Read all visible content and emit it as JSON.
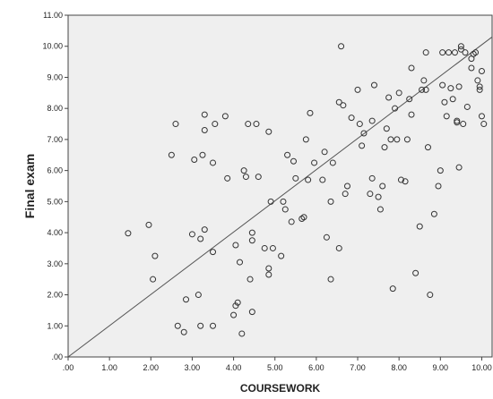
{
  "chart_data": {
    "type": "scatter",
    "xlabel": "COURSEWORK",
    "ylabel": "Final exam",
    "xlim": [
      0,
      10.25
    ],
    "ylim": [
      0,
      11
    ],
    "x_ticks": [
      ".00",
      "1.00",
      "2.00",
      "3.00",
      "4.00",
      "5.00",
      "6.00",
      "7.00",
      "8.00",
      "9.00",
      "10.00"
    ],
    "y_ticks": [
      ".00",
      "1.00",
      "2.00",
      "3.00",
      "4.00",
      "5.00",
      "6.00",
      "7.00",
      "8.00",
      "9.00",
      "10.00",
      "11.00"
    ],
    "grid": false,
    "background_color": "#efefef",
    "marker": "open-circle",
    "fit_line": {
      "type": "linear",
      "from": [
        0,
        0
      ],
      "to": [
        10.25,
        10.3
      ]
    },
    "points": [
      [
        1.45,
        3.98
      ],
      [
        1.95,
        4.25
      ],
      [
        2.05,
        2.5
      ],
      [
        2.1,
        3.25
      ],
      [
        2.5,
        6.5
      ],
      [
        2.6,
        7.5
      ],
      [
        2.65,
        1.0
      ],
      [
        2.8,
        0.8
      ],
      [
        2.85,
        1.85
      ],
      [
        3.0,
        3.95
      ],
      [
        3.05,
        6.35
      ],
      [
        3.15,
        2.0
      ],
      [
        3.2,
        1.0
      ],
      [
        3.2,
        3.8
      ],
      [
        3.25,
        6.5
      ],
      [
        3.3,
        4.1
      ],
      [
        3.3,
        7.3
      ],
      [
        3.3,
        7.8
      ],
      [
        3.5,
        1.0
      ],
      [
        3.5,
        3.38
      ],
      [
        3.5,
        6.25
      ],
      [
        3.55,
        7.5
      ],
      [
        3.8,
        7.75
      ],
      [
        3.85,
        5.75
      ],
      [
        4.0,
        1.35
      ],
      [
        4.05,
        1.65
      ],
      [
        4.05,
        3.6
      ],
      [
        4.1,
        1.75
      ],
      [
        4.15,
        3.05
      ],
      [
        4.2,
        0.75
      ],
      [
        4.25,
        6.0
      ],
      [
        4.3,
        5.8
      ],
      [
        4.35,
        7.5
      ],
      [
        4.4,
        2.5
      ],
      [
        4.45,
        1.45
      ],
      [
        4.45,
        3.75
      ],
      [
        4.45,
        4.0
      ],
      [
        4.55,
        7.5
      ],
      [
        4.6,
        5.8
      ],
      [
        4.75,
        3.5
      ],
      [
        4.85,
        2.65
      ],
      [
        4.85,
        2.85
      ],
      [
        4.85,
        7.25
      ],
      [
        4.9,
        5.0
      ],
      [
        4.95,
        3.5
      ],
      [
        5.15,
        3.25
      ],
      [
        5.2,
        5.0
      ],
      [
        5.25,
        4.75
      ],
      [
        5.3,
        6.5
      ],
      [
        5.4,
        4.35
      ],
      [
        5.45,
        6.3
      ],
      [
        5.5,
        5.75
      ],
      [
        5.65,
        4.45
      ],
      [
        5.7,
        4.5
      ],
      [
        5.75,
        7.0
      ],
      [
        5.8,
        5.7
      ],
      [
        5.85,
        7.85
      ],
      [
        5.95,
        6.25
      ],
      [
        6.15,
        5.7
      ],
      [
        6.2,
        6.6
      ],
      [
        6.25,
        3.85
      ],
      [
        6.35,
        5.0
      ],
      [
        6.35,
        2.5
      ],
      [
        6.4,
        6.25
      ],
      [
        6.55,
        8.2
      ],
      [
        6.55,
        3.5
      ],
      [
        6.6,
        10.0
      ],
      [
        6.65,
        8.1
      ],
      [
        6.7,
        5.25
      ],
      [
        6.75,
        5.5
      ],
      [
        6.85,
        7.7
      ],
      [
        7.0,
        8.6
      ],
      [
        7.05,
        7.5
      ],
      [
        7.1,
        6.8
      ],
      [
        7.15,
        7.2
      ],
      [
        7.3,
        5.25
      ],
      [
        7.35,
        5.75
      ],
      [
        7.35,
        7.6
      ],
      [
        7.4,
        8.75
      ],
      [
        7.5,
        5.15
      ],
      [
        7.55,
        4.75
      ],
      [
        7.6,
        5.5
      ],
      [
        7.65,
        6.75
      ],
      [
        7.7,
        7.35
      ],
      [
        7.75,
        8.35
      ],
      [
        7.8,
        7.0
      ],
      [
        7.85,
        2.2
      ],
      [
        7.9,
        8.0
      ],
      [
        7.95,
        7.0
      ],
      [
        8.0,
        8.5
      ],
      [
        8.05,
        5.7
      ],
      [
        8.15,
        5.65
      ],
      [
        8.2,
        7.0
      ],
      [
        8.25,
        8.3
      ],
      [
        8.3,
        9.3
      ],
      [
        8.3,
        7.8
      ],
      [
        8.4,
        2.7
      ],
      [
        8.5,
        4.2
      ],
      [
        8.55,
        8.6
      ],
      [
        8.6,
        8.9
      ],
      [
        8.65,
        9.8
      ],
      [
        8.65,
        8.6
      ],
      [
        8.7,
        6.75
      ],
      [
        8.75,
        2.0
      ],
      [
        8.85,
        4.6
      ],
      [
        8.95,
        5.5
      ],
      [
        9.0,
        6.0
      ],
      [
        9.05,
        8.75
      ],
      [
        9.05,
        9.8
      ],
      [
        9.1,
        8.2
      ],
      [
        9.15,
        7.75
      ],
      [
        9.2,
        9.8
      ],
      [
        9.25,
        8.65
      ],
      [
        9.3,
        8.3
      ],
      [
        9.35,
        9.8
      ],
      [
        9.4,
        7.55
      ],
      [
        9.4,
        7.6
      ],
      [
        9.45,
        6.1
      ],
      [
        9.45,
        8.7
      ],
      [
        9.5,
        9.9
      ],
      [
        9.5,
        10.0
      ],
      [
        9.55,
        7.5
      ],
      [
        9.6,
        9.8
      ],
      [
        9.65,
        8.05
      ],
      [
        9.75,
        9.6
      ],
      [
        9.75,
        9.3
      ],
      [
        9.8,
        9.75
      ],
      [
        9.85,
        9.8
      ],
      [
        9.9,
        8.9
      ],
      [
        9.95,
        8.7
      ],
      [
        9.95,
        8.6
      ],
      [
        10.0,
        7.75
      ],
      [
        10.0,
        9.2
      ],
      [
        10.05,
        7.5
      ]
    ]
  }
}
